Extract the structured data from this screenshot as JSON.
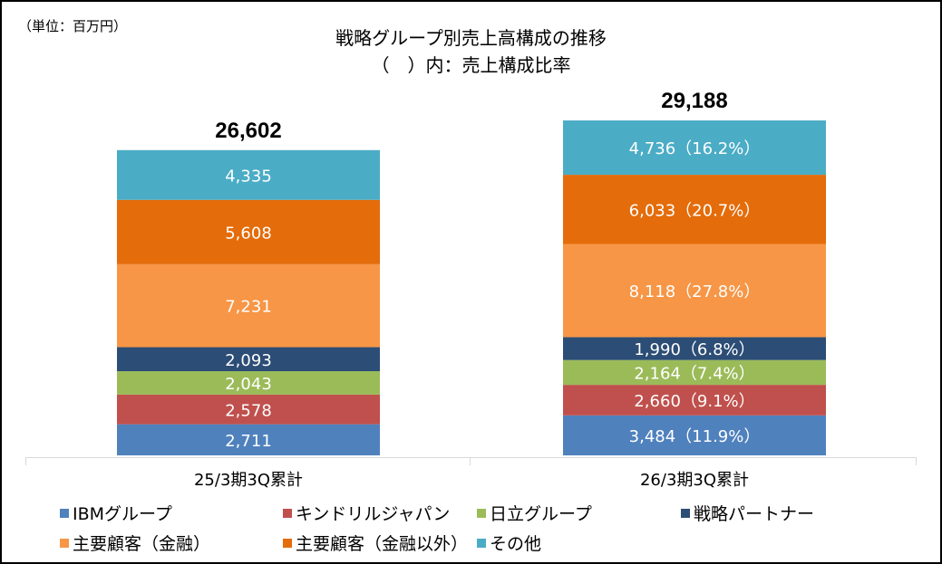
{
  "unit_label": "（単位：百万円）",
  "chart_data": {
    "type": "bar",
    "stacked": true,
    "title": "戦略グループ別売上高構成の推移",
    "subtitle": "（　）内：売上構成比率",
    "unit": "百万円",
    "categories": [
      "25/3期3Q累計",
      "26/3期3Q累計"
    ],
    "totals": [
      26602,
      29188
    ],
    "total_labels": [
      "26,602",
      "29,188"
    ],
    "series": [
      {
        "name": "IBMグループ",
        "color": "#4f81bd",
        "values": [
          2711,
          3484
        ],
        "labels": [
          "2,711",
          "3,484（11.9%）"
        ],
        "shares": [
          null,
          11.9
        ]
      },
      {
        "name": "キンドリルジャパン",
        "color": "#c0504d",
        "values": [
          2578,
          2660
        ],
        "labels": [
          "2,578",
          "2,660（9.1%）"
        ],
        "shares": [
          null,
          9.1
        ]
      },
      {
        "name": "日立グループ",
        "color": "#9bbb59",
        "values": [
          2043,
          2164
        ],
        "labels": [
          "2,043",
          "2,164（7.4%）"
        ],
        "shares": [
          null,
          7.4
        ]
      },
      {
        "name": "戦略パートナー",
        "color": "#2c4d75",
        "values": [
          2093,
          1990
        ],
        "labels": [
          "2,093",
          "1,990（6.8%）"
        ],
        "shares": [
          null,
          6.8
        ]
      },
      {
        "name": "主要顧客（金融）",
        "color": "#f79646",
        "values": [
          7231,
          8118
        ],
        "labels": [
          "7,231",
          "8,118（27.8%）"
        ],
        "shares": [
          null,
          27.8
        ]
      },
      {
        "name": "主要顧客（金融以外）",
        "color": "#e46c0a",
        "values": [
          5608,
          6033
        ],
        "labels": [
          "5,608",
          "6,033（20.7%）"
        ],
        "shares": [
          null,
          20.7
        ]
      },
      {
        "name": "その他",
        "color": "#4bacc6",
        "values": [
          4335,
          4736
        ],
        "labels": [
          "4,335",
          "4,736（16.2%）"
        ],
        "shares": [
          null,
          16.2
        ]
      }
    ],
    "legend_position": "bottom",
    "grid": false,
    "ylim": [
      0,
      29188
    ]
  },
  "colors": {
    "axis": "#d9d9d9",
    "label_text": "#ffffff",
    "text": "#000000"
  }
}
